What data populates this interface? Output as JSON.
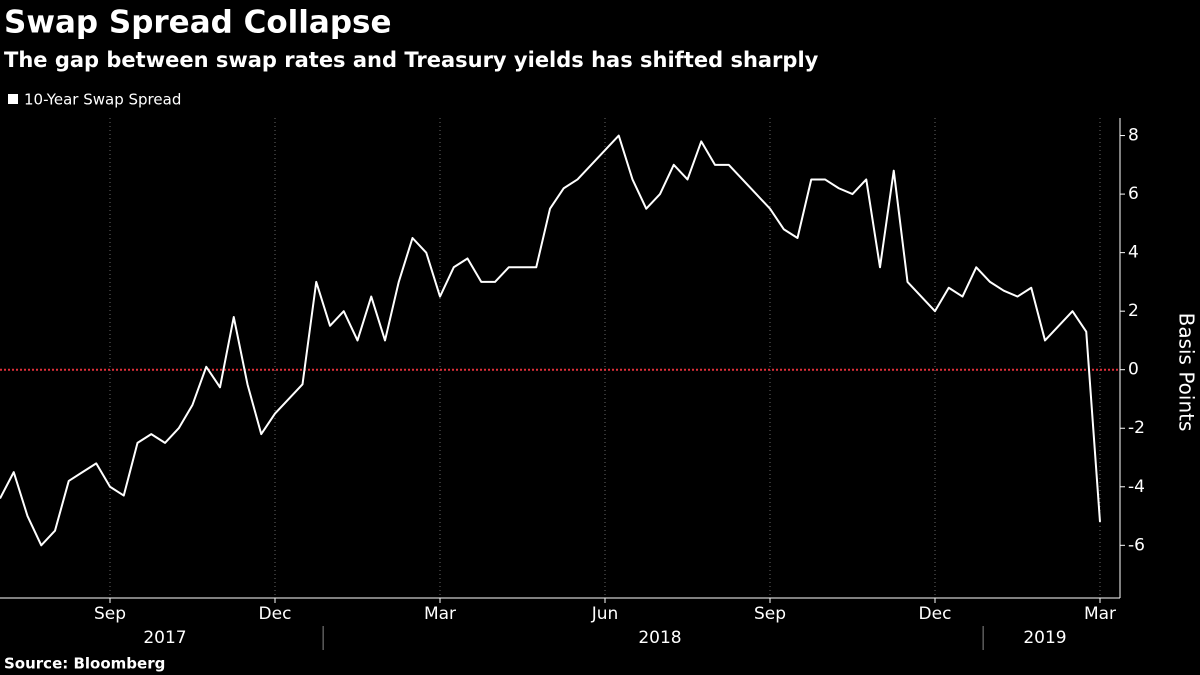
{
  "chart_data": {
    "type": "line",
    "title": "Swap Spread Collapse",
    "subtitle": "The gap between swap rates and Treasury yields has shifted sharply",
    "source": "Source: Bloomberg",
    "y_label": "Basis Points",
    "x": [
      "2017-07",
      "2017-07",
      "2017-07",
      "2017-07",
      "2017-08",
      "2017-08",
      "2017-08",
      "2017-08",
      "2017-09",
      "2017-09",
      "2017-09",
      "2017-09",
      "2017-10",
      "2017-10",
      "2017-10",
      "2017-10",
      "2017-11",
      "2017-11",
      "2017-11",
      "2017-11",
      "2017-12",
      "2017-12",
      "2017-12",
      "2017-12",
      "2018-01",
      "2018-01",
      "2018-01",
      "2018-01",
      "2018-02",
      "2018-02",
      "2018-02",
      "2018-02",
      "2018-03",
      "2018-03",
      "2018-03",
      "2018-03",
      "2018-04",
      "2018-04",
      "2018-04",
      "2018-04",
      "2018-05",
      "2018-05",
      "2018-05",
      "2018-05",
      "2018-06",
      "2018-06",
      "2018-06",
      "2018-06",
      "2018-07",
      "2018-07",
      "2018-07",
      "2018-07",
      "2018-08",
      "2018-08",
      "2018-08",
      "2018-08",
      "2018-09",
      "2018-09",
      "2018-09",
      "2018-09",
      "2018-10",
      "2018-10",
      "2018-10",
      "2018-10",
      "2018-11",
      "2018-11",
      "2018-11",
      "2018-11",
      "2018-12",
      "2018-12",
      "2018-12",
      "2018-12",
      "2019-01",
      "2019-01",
      "2019-01",
      "2019-01",
      "2019-02",
      "2019-02",
      "2019-02",
      "2019-02",
      "2019-03"
    ],
    "series": [
      {
        "name": "10-Year Swap Spread",
        "color": "#ffffff",
        "values": [
          -4.4,
          -3.5,
          -5,
          -6,
          -5.5,
          -3.8,
          -3.5,
          -3.2,
          -4,
          -4.3,
          -2.5,
          -2.2,
          -2.5,
          -2,
          -1.2,
          0.1,
          -0.6,
          1.8,
          -0.5,
          -2.2,
          -1.5,
          -1,
          -0.5,
          3,
          1.5,
          2,
          1,
          2.5,
          1,
          3,
          4.5,
          4,
          2.5,
          3.5,
          3.8,
          3,
          3,
          3.5,
          3.5,
          3.5,
          5.5,
          6.2,
          6.5,
          7,
          7.5,
          8,
          6.5,
          5.5,
          6,
          7,
          6.5,
          7.8,
          7,
          7,
          6.5,
          6,
          5.5,
          4.8,
          4.5,
          6.5,
          6.5,
          6.2,
          6,
          6.5,
          3.5,
          6.8,
          3,
          2.5,
          2,
          2.8,
          2.5,
          3.5,
          3,
          2.7,
          2.5,
          2.8,
          1,
          1.5,
          2,
          1.3,
          -5.2
        ]
      }
    ],
    "xticks": [
      {
        "value": "2017-09",
        "label": "Sep"
      },
      {
        "value": "2017-12",
        "label": "Dec"
      },
      {
        "value": "2018-03",
        "label": "Mar"
      },
      {
        "value": "2018-06",
        "label": "Jun"
      },
      {
        "value": "2018-09",
        "label": "Sep"
      },
      {
        "value": "2018-12",
        "label": "Dec"
      },
      {
        "value": "2019-03",
        "label": "Mar"
      }
    ],
    "years": [
      "2017",
      "2018",
      "2019"
    ],
    "ylim": [
      -7.8,
      8.6
    ],
    "yticks": [
      -6,
      -4,
      -2,
      0,
      2,
      4,
      6,
      8
    ],
    "reference_line": 0,
    "reference_color": "#e0303a",
    "grid": true
  }
}
